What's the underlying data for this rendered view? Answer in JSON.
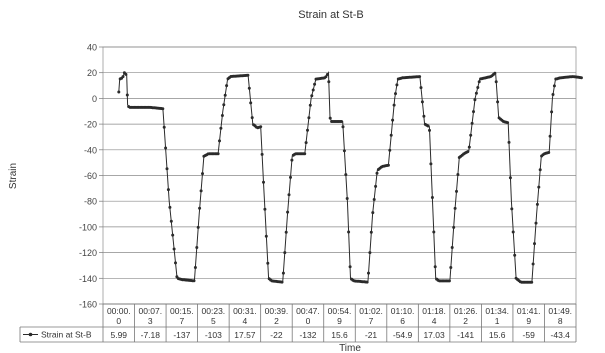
{
  "chart_data": {
    "type": "line",
    "title": "Strain at St-B",
    "xlabel": "Time",
    "ylabel": "Strain",
    "ylim": [
      -160,
      40
    ],
    "yticks": [
      40,
      20,
      0,
      -20,
      -40,
      -60,
      -80,
      -100,
      -120,
      -140,
      -160
    ],
    "grid": true,
    "legend": "bottom-left (data table row)",
    "categories": [
      [
        "00:00.",
        "0"
      ],
      [
        "00:07.",
        "3"
      ],
      [
        "00:15.",
        "7"
      ],
      [
        "00:23.",
        "5"
      ],
      [
        "00:31.",
        "4"
      ],
      [
        "00:39.",
        "2"
      ],
      [
        "00:47.",
        "0"
      ],
      [
        "00:54.",
        "9"
      ],
      [
        "01:02.",
        "7"
      ],
      [
        "01:10.",
        "6"
      ],
      [
        "01:18.",
        "4"
      ],
      [
        "01:26.",
        "2"
      ],
      [
        "01:34.",
        "1"
      ],
      [
        "01:41.",
        "9"
      ],
      [
        "01:49.",
        "8"
      ]
    ],
    "series": [
      {
        "name": "Strain at St-B",
        "color": "#2b2b2b",
        "table_values": [
          "5.99",
          "-7.18",
          "-137",
          "-103",
          "17.57",
          "-22",
          "-132",
          "15.6",
          "-21",
          "-54.9",
          "17.03",
          "-141",
          "15.6",
          "-59",
          "-43.4"
        ],
        "profile": [
          [
            0.0,
            5
          ],
          [
            0.03,
            15
          ],
          [
            0.12,
            16
          ],
          [
            0.18,
            20
          ],
          [
            0.25,
            18
          ],
          [
            0.28,
            -5
          ],
          [
            0.33,
            -7
          ],
          [
            1.0,
            -7
          ],
          [
            1.4,
            -8
          ],
          [
            1.6,
            -80
          ],
          [
            1.85,
            -140
          ],
          [
            2.0,
            -141
          ],
          [
            2.4,
            -142
          ],
          [
            2.55,
            -90
          ],
          [
            2.7,
            -45
          ],
          [
            2.85,
            -43
          ],
          [
            3.15,
            -43
          ],
          [
            3.3,
            -10
          ],
          [
            3.45,
            15
          ],
          [
            3.55,
            17
          ],
          [
            4.1,
            18
          ],
          [
            4.25,
            -20
          ],
          [
            4.4,
            -23
          ],
          [
            4.5,
            -22
          ],
          [
            4.6,
            -70
          ],
          [
            4.75,
            -140
          ],
          [
            4.85,
            -142
          ],
          [
            5.2,
            -143
          ],
          [
            5.35,
            -90
          ],
          [
            5.5,
            -45
          ],
          [
            5.6,
            -43
          ],
          [
            5.9,
            -43
          ],
          [
            6.1,
            0
          ],
          [
            6.25,
            15
          ],
          [
            6.55,
            16
          ],
          [
            6.65,
            20
          ],
          [
            6.7,
            -15
          ],
          [
            6.75,
            -18
          ],
          [
            7.1,
            -18
          ],
          [
            7.25,
            -80
          ],
          [
            7.35,
            -140
          ],
          [
            7.45,
            -142
          ],
          [
            7.9,
            -143
          ],
          [
            8.05,
            -90
          ],
          [
            8.2,
            -56
          ],
          [
            8.35,
            -53
          ],
          [
            8.55,
            -52
          ],
          [
            8.75,
            0
          ],
          [
            8.85,
            15
          ],
          [
            9.0,
            16
          ],
          [
            9.55,
            17
          ],
          [
            9.7,
            -20
          ],
          [
            9.85,
            -22
          ],
          [
            9.95,
            -80
          ],
          [
            10.05,
            -140
          ],
          [
            10.15,
            -142
          ],
          [
            10.5,
            -142
          ],
          [
            10.65,
            -90
          ],
          [
            10.8,
            -46
          ],
          [
            10.95,
            -43
          ],
          [
            11.1,
            -41
          ],
          [
            11.3,
            0
          ],
          [
            11.45,
            15
          ],
          [
            11.8,
            17
          ],
          [
            11.95,
            20
          ],
          [
            12.05,
            -15
          ],
          [
            12.2,
            -18
          ],
          [
            12.35,
            -19
          ],
          [
            12.45,
            -80
          ],
          [
            12.6,
            -140
          ],
          [
            12.75,
            -143
          ],
          [
            13.1,
            -143
          ],
          [
            13.25,
            -90
          ],
          [
            13.4,
            -45
          ],
          [
            13.5,
            -43
          ],
          [
            13.65,
            -42
          ],
          [
            13.75,
            0
          ],
          [
            13.85,
            15
          ],
          [
            14.0,
            16
          ],
          [
            14.4,
            17
          ],
          [
            14.7,
            16
          ]
        ]
      }
    ]
  }
}
